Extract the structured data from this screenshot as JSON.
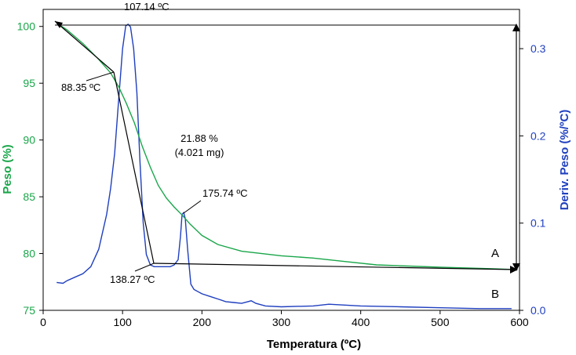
{
  "chart_data": {
    "type": "line",
    "title": "",
    "xlabel": "Temperatura (ºC)",
    "ylabel_left": "Peso (%)",
    "ylabel_right": "Deriv. Peso (%/ºC)",
    "xlim": [
      0,
      600
    ],
    "ylim_left": [
      75,
      101.5
    ],
    "ylim_right": [
      0,
      0.345
    ],
    "x_ticks": [
      0,
      100,
      200,
      300,
      400,
      500,
      600
    ],
    "y_left_ticks": [
      75,
      80,
      85,
      90,
      95,
      100
    ],
    "y_right_ticks": [
      0.0,
      0.1,
      0.2,
      0.3
    ],
    "x_tick_labels": [
      "0",
      "100",
      "200",
      "300",
      "400",
      "500",
      "600"
    ],
    "y_left_tick_labels": [
      "75",
      "80",
      "85",
      "90",
      "95",
      "100"
    ],
    "y_right_tick_labels": [
      "0.0",
      "0.1",
      "0.2",
      "0.3"
    ],
    "colors": {
      "weight": "#1aa64a",
      "derivative": "#1f3fbf",
      "annotation": "#000000"
    },
    "series": [
      {
        "name": "Peso",
        "axis": "left",
        "x": [
          17,
          30,
          50,
          70,
          85,
          95,
          105,
          115,
          125,
          135,
          145,
          155,
          165,
          175,
          185,
          200,
          220,
          250,
          300,
          340,
          380,
          420,
          460,
          500,
          550,
          590
        ],
        "y": [
          100.3,
          99.7,
          98.5,
          97.1,
          95.9,
          94.7,
          93.2,
          91.5,
          89.4,
          87.6,
          86.0,
          84.9,
          84.1,
          83.4,
          82.6,
          81.6,
          80.8,
          80.2,
          79.8,
          79.6,
          79.3,
          79.0,
          78.9,
          78.8,
          78.7,
          78.6
        ]
      },
      {
        "name": "Deriv. Peso",
        "axis": "right",
        "x": [
          17,
          25,
          30,
          40,
          50,
          60,
          70,
          80,
          85,
          90,
          95,
          100,
          104,
          107,
          110,
          114,
          118,
          122,
          126,
          130,
          135,
          140,
          145,
          150,
          155,
          160,
          165,
          170,
          173,
          175,
          177,
          179,
          182,
          186,
          190,
          200,
          210,
          220,
          230,
          240,
          250,
          258,
          262,
          268,
          280,
          300,
          340,
          360,
          380,
          400,
          450,
          500,
          550,
          590
        ],
        "y": [
          0.032,
          0.031,
          0.034,
          0.038,
          0.042,
          0.05,
          0.07,
          0.11,
          0.14,
          0.18,
          0.24,
          0.3,
          0.326,
          0.328,
          0.325,
          0.3,
          0.25,
          0.17,
          0.1,
          0.064,
          0.052,
          0.05,
          0.05,
          0.05,
          0.05,
          0.05,
          0.052,
          0.058,
          0.085,
          0.11,
          0.112,
          0.105,
          0.07,
          0.03,
          0.024,
          0.019,
          0.016,
          0.013,
          0.01,
          0.009,
          0.008,
          0.01,
          0.011,
          0.008,
          0.005,
          0.004,
          0.005,
          0.007,
          0.006,
          0.005,
          0.004,
          0.003,
          0.002,
          0.002
        ]
      }
    ],
    "annotations": [
      {
        "label": "107.14 ºC",
        "x": 107.14,
        "axis": "right",
        "y": 0.328
      },
      {
        "label": "88.35 ºC",
        "x": 88.35,
        "axis": "left",
        "y": 95.9
      },
      {
        "label": "175.74 ºC",
        "x": 175.74,
        "axis": "right",
        "y": 0.112
      },
      {
        "label": "138.27 ºC",
        "x": 138.27,
        "axis": "left",
        "y": 79.3
      }
    ],
    "mass_loss": {
      "percent": "21.88 %",
      "mass": "(4.021 mg)"
    },
    "markers": [
      "A",
      "B"
    ]
  }
}
